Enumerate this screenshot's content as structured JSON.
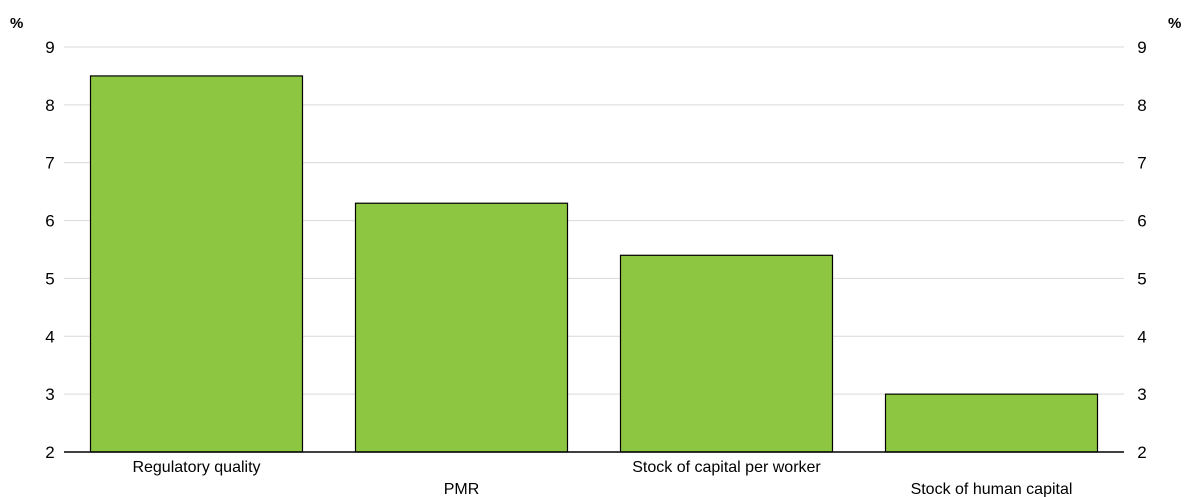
{
  "chart_data": {
    "type": "bar",
    "categories": [
      "Regulatory quality",
      "PMR",
      "Stock of capital per worker",
      "Stock of human capital"
    ],
    "values": [
      8.5,
      6.3,
      5.4,
      3.0
    ],
    "ylim": [
      2,
      9
    ],
    "yticks": [
      "2",
      "3",
      "4",
      "5",
      "6",
      "7",
      "8",
      "9"
    ],
    "ylabel_left": "%",
    "ylabel_right": "%",
    "grid": true,
    "bar_color": "#8dc641"
  }
}
